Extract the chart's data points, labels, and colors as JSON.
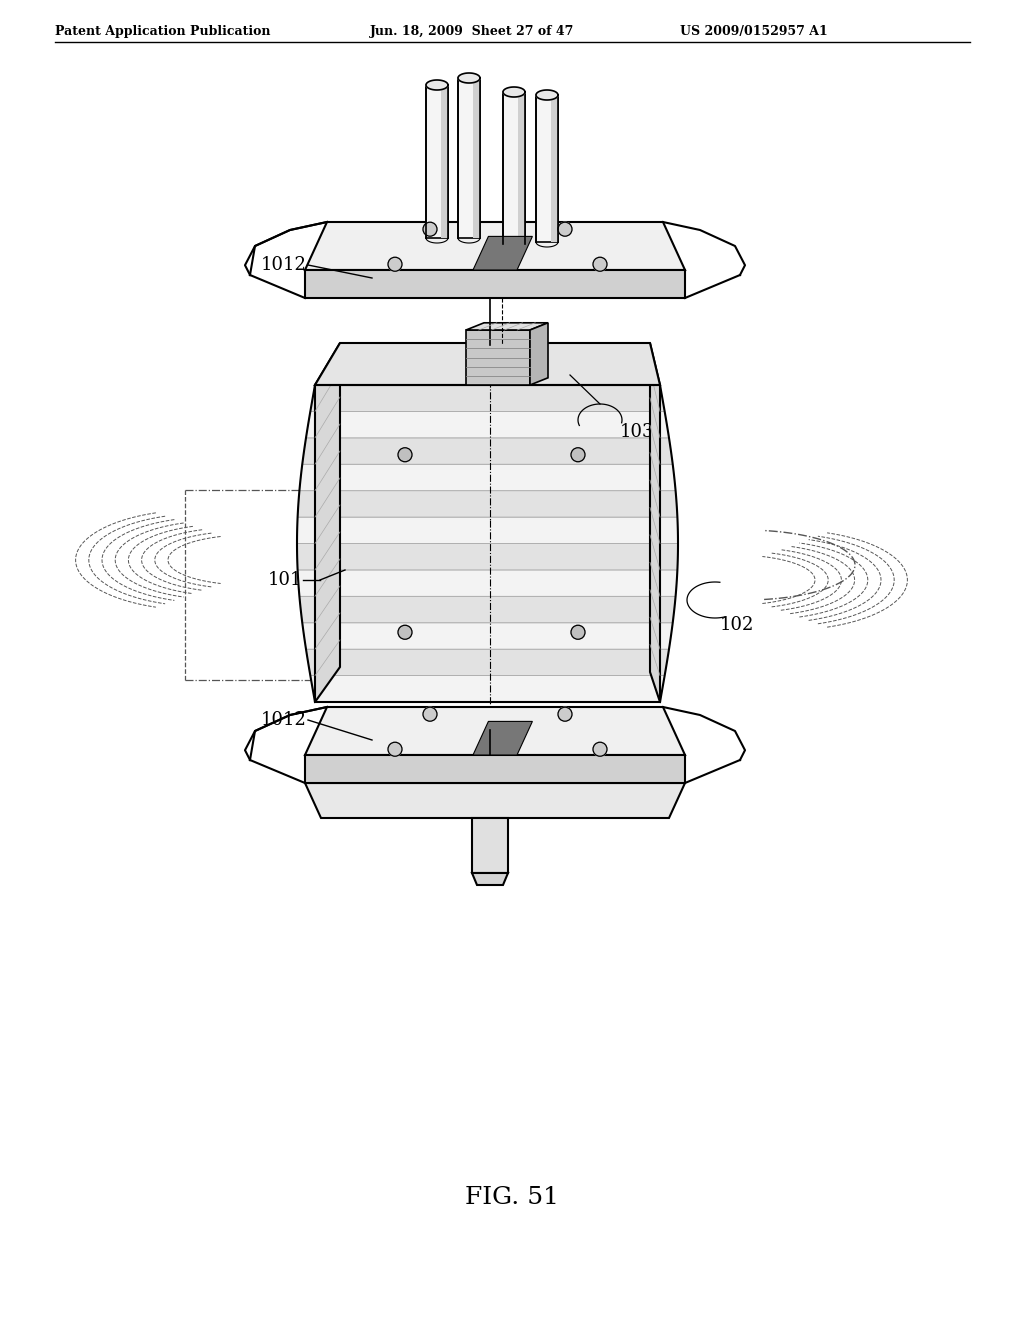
{
  "background_color": "#ffffff",
  "header_left": "Patent Application Publication",
  "header_center": "Jun. 18, 2009  Sheet 27 of 47",
  "header_right": "US 2009/0152957 A1",
  "figure_label": "FIG. 51",
  "label_1012_top": "1012",
  "label_1012_bot": "1012",
  "label_101": "101",
  "label_102": "102",
  "label_103": "103",
  "line_color": "#000000",
  "lw_main": 1.5,
  "lw_thin": 0.8
}
